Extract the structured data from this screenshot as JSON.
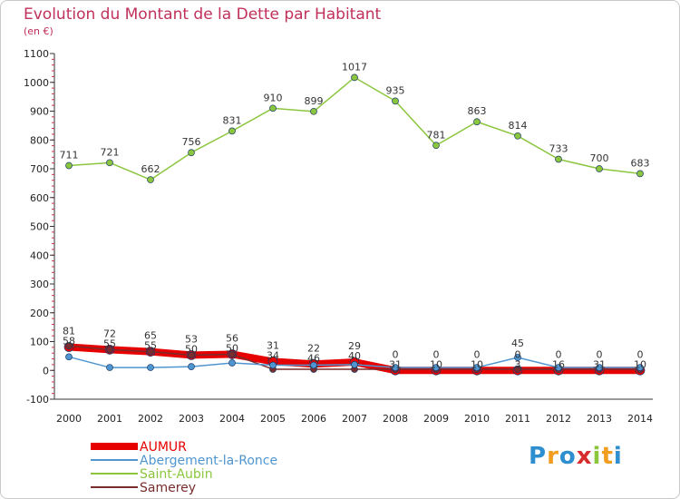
{
  "title": "Evolution du Montant de la Dette par Habitant",
  "subtitle": "(en €)",
  "logo": {
    "letters": [
      "P",
      "r",
      "o",
      "x",
      "i",
      "t",
      "i"
    ],
    "colors": [
      "#2d8fcf",
      "#f29d1e",
      "#2d8fcf",
      "#d62d2d",
      "#8cc63f",
      "#f29d1e",
      "#2d8fcf"
    ]
  },
  "chart_data": {
    "type": "line",
    "categories": [
      "2000",
      "2001",
      "2002",
      "2003",
      "2004",
      "2005",
      "2006",
      "2007",
      "2008",
      "2009",
      "2010",
      "2011",
      "2012",
      "2013",
      "2014"
    ],
    "y_ticks": [
      -100,
      0,
      100,
      200,
      300,
      400,
      500,
      600,
      700,
      800,
      900,
      1000,
      1100
    ],
    "ylim": [
      -100,
      1100
    ],
    "grid": false,
    "legend_position": "bottom-left",
    "series": [
      {
        "name": "Saint-Aubin",
        "color": "#8cc63f",
        "values": [
          711,
          721,
          662,
          756,
          831,
          910,
          899,
          1017,
          935,
          781,
          863,
          814,
          733,
          700,
          683
        ],
        "labels": [
          "711",
          "721",
          "662",
          "756",
          "831",
          "910",
          "899",
          "1017",
          "935",
          "781",
          "863",
          "814",
          "733",
          "700",
          "683"
        ]
      },
      {
        "name": "Abergement-la-Ronce",
        "color": "#4f95cf",
        "values": [
          47,
          10,
          10,
          13,
          26,
          18,
          18,
          20,
          10,
          10,
          10,
          45,
          10,
          10,
          10
        ],
        "labels": [
          "",
          "",
          "",
          "",
          "",
          "",
          "",
          "",
          "",
          "",
          "",
          "45",
          "",
          "",
          ""
        ]
      },
      {
        "name": "Samerey",
        "color": "#7a2d2d",
        "values": [
          85,
          72,
          65,
          53,
          56,
          4,
          4,
          4,
          4,
          4,
          4,
          4,
          4,
          4,
          4
        ],
        "labels": [
          "",
          "",
          "",
          "",
          "",
          "",
          "",
          "",
          "",
          "",
          "",
          "",
          "",
          "",
          ""
        ]
      },
      {
        "name": "AUMUR",
        "color": "#e60000",
        "values": [
          81,
          72,
          65,
          53,
          56,
          31,
          22,
          29,
          0,
          0,
          0,
          0,
          0,
          0,
          0
        ],
        "labels": [
          "81",
          "72",
          "65",
          "53",
          "56",
          "31",
          "22",
          "29",
          "0",
          "0",
          "0",
          "0",
          "0",
          "0",
          "0"
        ]
      }
    ],
    "overlap_labels": [
      "58",
      "55",
      "55",
      "50",
      "50",
      "34",
      "46",
      "40",
      "31",
      "10",
      "10",
      "3",
      "16",
      "31",
      "10"
    ]
  }
}
